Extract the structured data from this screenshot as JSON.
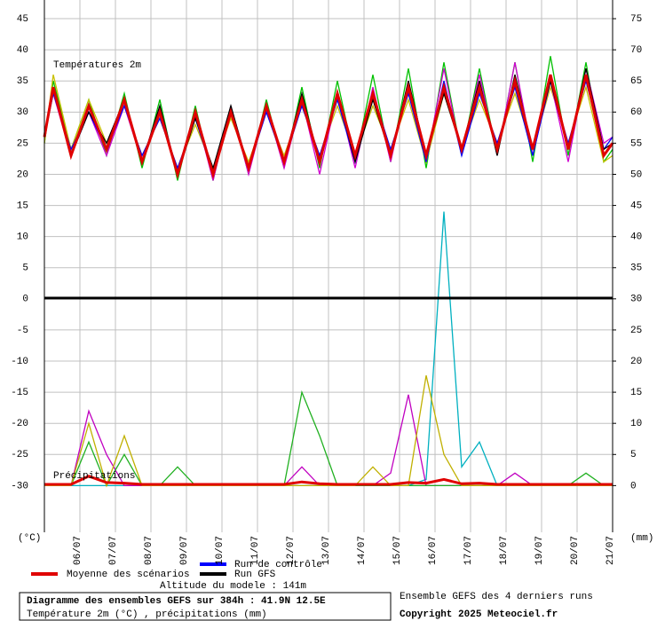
{
  "chart_data": {
    "type": "line",
    "title": "Diagramme des ensembles GEFS sur 384h : 41.9N 12.5E",
    "subtitle": "Température 2m (°C) , précipitations (mm)",
    "source_note": "Ensemble GEFS des 4 derniers runs",
    "copyright": "Copyright 2025 Meteociel.fr",
    "altitude": "Altitude du modele : 141m",
    "annotations": [
      "Températures 2m",
      "Précipitations"
    ],
    "ylabel": "(°C)",
    "y2label": "(mm)",
    "grid": true,
    "x": [
      0,
      6,
      18,
      30,
      42,
      54,
      66,
      78,
      90,
      102,
      114,
      126,
      138,
      150,
      162,
      174,
      186,
      198,
      210,
      222,
      234,
      246,
      258,
      270,
      282,
      294,
      306,
      318,
      330,
      342,
      354,
      366,
      378,
      384
    ],
    "xlim": [
      0,
      384
    ],
    "xticks": [
      {
        "value": 24,
        "label": "06/07"
      },
      {
        "value": 48,
        "label": "07/07"
      },
      {
        "value": 72,
        "label": "08/07"
      },
      {
        "value": 96,
        "label": "09/07"
      },
      {
        "value": 120,
        "label": "10/07"
      },
      {
        "value": 144,
        "label": "11/07"
      },
      {
        "value": 168,
        "label": "12/07"
      },
      {
        "value": 192,
        "label": "13/07"
      },
      {
        "value": 216,
        "label": "14/07"
      },
      {
        "value": 240,
        "label": "15/07"
      },
      {
        "value": 264,
        "label": "16/07"
      },
      {
        "value": 288,
        "label": "17/07"
      },
      {
        "value": 312,
        "label": "18/07"
      },
      {
        "value": 336,
        "label": "19/07"
      },
      {
        "value": 360,
        "label": "20/07"
      },
      {
        "value": 384,
        "label": "21/07"
      }
    ],
    "ylim": [
      -37.5,
      48
    ],
    "yticks": [
      -30,
      -25,
      -20,
      -15,
      -10,
      -5,
      0,
      5,
      10,
      15,
      20,
      25,
      30,
      35,
      40,
      45
    ],
    "y2lim": [
      -7.5,
      78
    ],
    "y2ticks": [
      0,
      5,
      10,
      15,
      20,
      25,
      30,
      35,
      40,
      45,
      50,
      55,
      60,
      65,
      70,
      75
    ],
    "series": [
      {
        "color": "#00c000",
        "values": [
          25,
          35,
          24,
          32,
          23,
          33,
          21,
          32,
          19,
          31,
          19,
          31,
          20,
          32,
          21,
          34,
          21,
          35,
          22,
          36,
          22,
          37,
          21,
          38,
          23,
          37,
          23,
          38,
          22,
          39,
          23,
          38,
          22,
          24
        ]
      },
      {
        "color": "#c8c000",
        "values": [
          25,
          36,
          24,
          32,
          25,
          31,
          23,
          29,
          21,
          28,
          21,
          29,
          22,
          30,
          23,
          31,
          23,
          31,
          23,
          31,
          24,
          32,
          22,
          33,
          24,
          32,
          25,
          33,
          24,
          34,
          25,
          34,
          22,
          23
        ]
      },
      {
        "color": "#d000d0",
        "values": [
          26,
          33,
          23,
          30,
          23,
          31,
          22,
          31,
          20,
          30,
          19,
          31,
          20,
          31,
          21,
          32,
          20,
          33,
          21,
          34,
          22,
          35,
          22,
          37,
          23,
          36,
          23,
          38,
          23,
          35,
          22,
          37,
          25,
          26
        ]
      },
      {
        "name": "Run de contrôle",
        "color": "#0000ff",
        "values": [
          26,
          33,
          24,
          30,
          24,
          31,
          23,
          29,
          21,
          29,
          20,
          30,
          21,
          30,
          22,
          31,
          23,
          32,
          22,
          33,
          24,
          33,
          22,
          35,
          23,
          33,
          25,
          34,
          23,
          35,
          25,
          35,
          24,
          26
        ]
      },
      {
        "name": "Run GFS",
        "color": "#000000",
        "values": [
          26,
          34,
          23,
          30,
          25,
          32,
          22,
          31,
          20,
          29,
          21,
          31,
          21,
          31,
          22,
          33,
          22,
          33,
          22,
          32,
          23,
          35,
          23,
          33,
          24,
          35,
          23,
          36,
          24,
          35,
          24,
          37,
          24,
          25
        ]
      },
      {
        "name": "Moyenne des scénarios",
        "color": "#e00000",
        "values": [
          26,
          34,
          23,
          31,
          24,
          32,
          22,
          30,
          20,
          30,
          20,
          30,
          21,
          31,
          22,
          32,
          22,
          33,
          23,
          33,
          23,
          34,
          23,
          34,
          24,
          34,
          24,
          35,
          24,
          36,
          24,
          36,
          23,
          25
        ]
      },
      {
        "color": "#00b0c0",
        "axis": "y2",
        "values": [
          0,
          0,
          0,
          0,
          0,
          0,
          0,
          0,
          0,
          0,
          0,
          0,
          0,
          0,
          0,
          0,
          0,
          0,
          0,
          0,
          0,
          0,
          1,
          44,
          3,
          7,
          0,
          0,
          0,
          0,
          0,
          0,
          0,
          0
        ]
      },
      {
        "color": "#c000c0",
        "axis": "y2",
        "values": [
          0,
          0,
          0,
          12,
          5,
          0,
          0,
          0,
          0,
          0,
          0,
          0,
          0,
          0,
          0,
          3,
          0,
          0,
          0,
          0,
          2,
          14.6,
          0,
          0,
          0,
          0,
          0,
          2,
          0,
          0,
          0,
          0,
          0,
          0
        ]
      },
      {
        "color": "#20b020",
        "axis": "y2",
        "values": [
          0,
          0,
          0,
          7,
          0,
          5,
          0,
          0,
          3,
          0,
          0,
          0,
          0,
          0,
          0,
          15,
          8,
          0,
          0,
          0,
          0,
          0,
          0,
          0,
          0,
          0,
          0,
          0,
          0,
          0,
          0,
          2,
          0,
          0
        ]
      },
      {
        "color": "#c0b000",
        "axis": "y2",
        "values": [
          0,
          0,
          0,
          10,
          0,
          8,
          0,
          0,
          0,
          0,
          0,
          0,
          0,
          0,
          0,
          0,
          0,
          0,
          0,
          3,
          0,
          0,
          17.7,
          5,
          0,
          0,
          0,
          0,
          0,
          0,
          0,
          0,
          0,
          0
        ]
      },
      {
        "color": "#e00000",
        "axis": "y2",
        "values": [
          0.2,
          0.2,
          0.2,
          1.5,
          0.5,
          0.4,
          0.2,
          0.2,
          0.2,
          0.2,
          0.2,
          0.2,
          0.2,
          0.2,
          0.2,
          0.6,
          0.3,
          0.2,
          0.2,
          0.2,
          0.2,
          0.5,
          0.4,
          1,
          0.3,
          0.4,
          0.2,
          0.2,
          0.2,
          0.2,
          0.2,
          0.2,
          0.2,
          0.2
        ]
      }
    ]
  }
}
